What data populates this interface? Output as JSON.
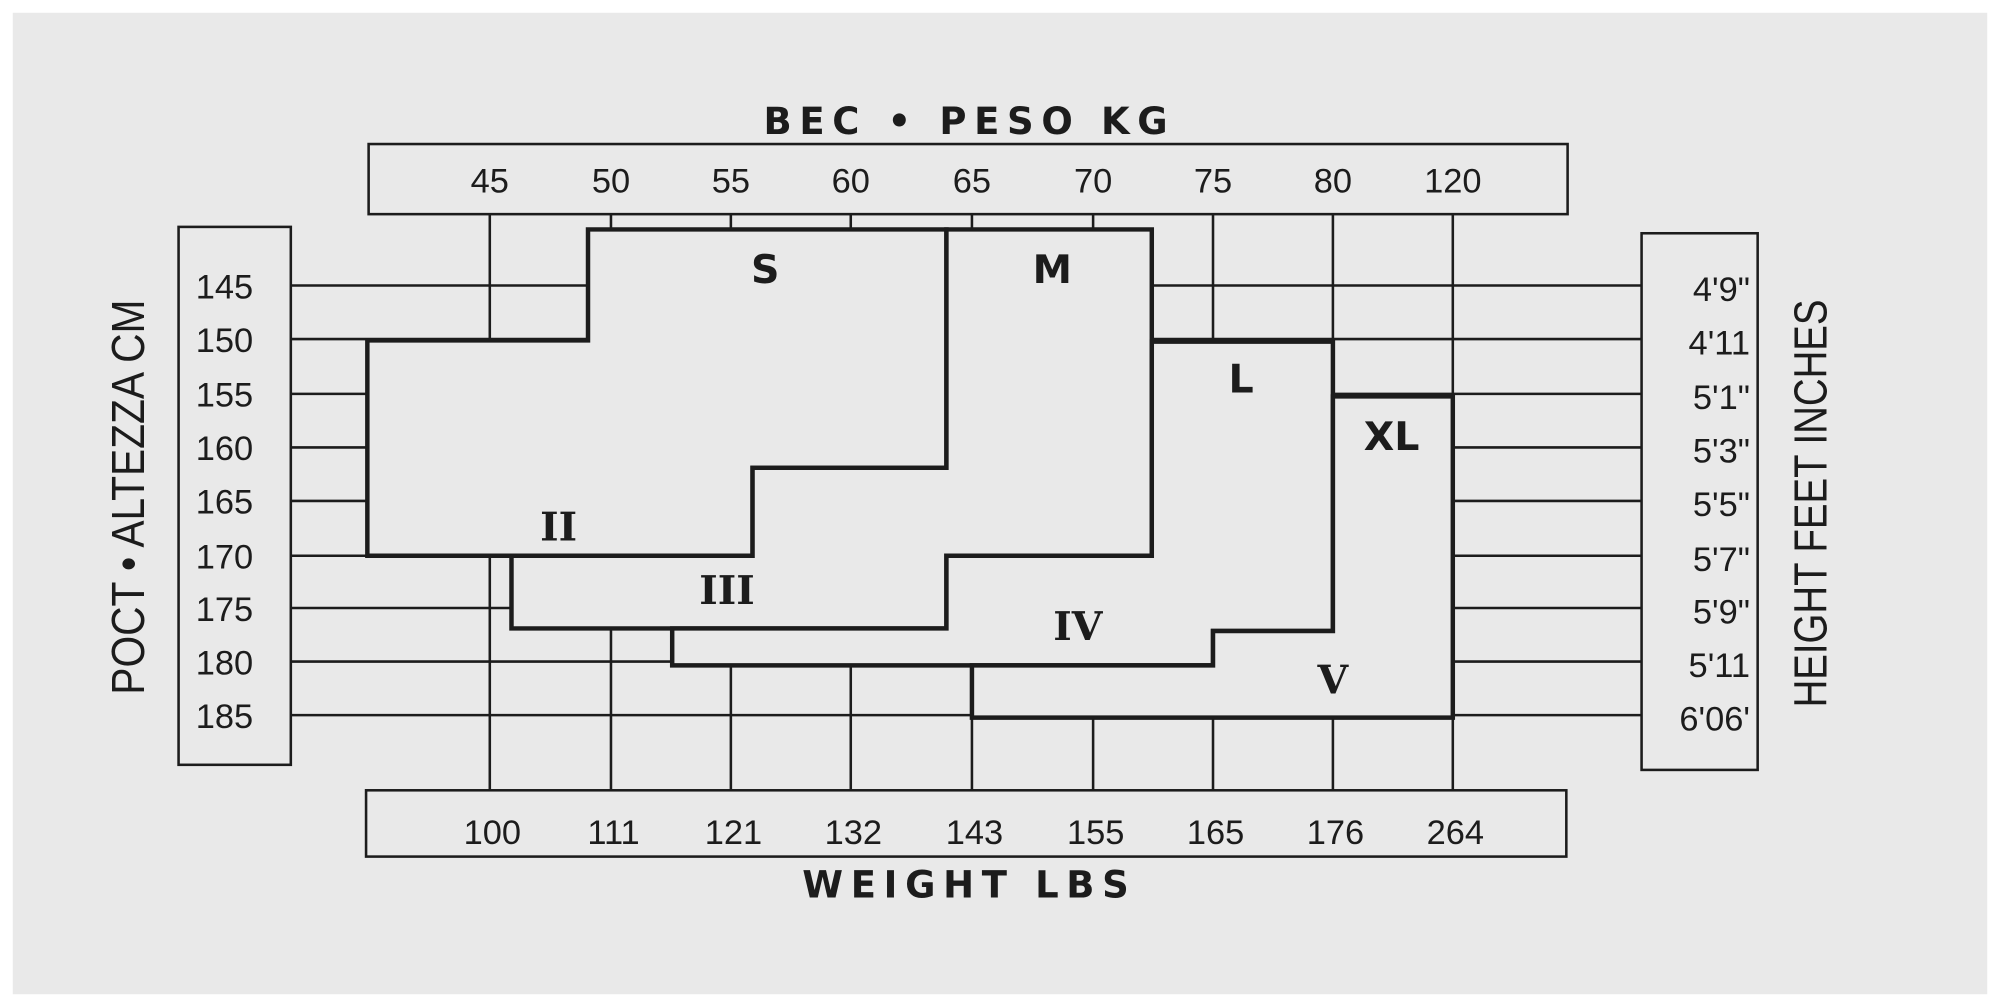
{
  "colors": {
    "background": "#e9e9e9",
    "line": "#1c1c1c",
    "border": "#ffffff"
  },
  "top_title": "BEC • PESO KG",
  "bottom_title": "WEIGHT LBS",
  "left_title": "POCT • ALTEZZA CM",
  "right_title": "HEIGHT FEET INCHES",
  "weight_kg": [
    "45",
    "50",
    "55",
    "60",
    "65",
    "70",
    "75",
    "80",
    "120"
  ],
  "weight_lbs": [
    "100",
    "111",
    "121",
    "132",
    "143",
    "155",
    "165",
    "176",
    "264"
  ],
  "height_cm": [
    "145",
    "150",
    "155",
    "160",
    "165",
    "170",
    "175",
    "180",
    "185"
  ],
  "height_ft": [
    "4'9\"",
    "4'11",
    "5'1\"",
    "5'3\"",
    "5'5\"",
    "5'7\"",
    "5'9\"",
    "5'11",
    "6'06'"
  ],
  "sizes": [
    {
      "letter": "S",
      "roman": "II"
    },
    {
      "letter": "M",
      "roman": "III"
    },
    {
      "letter": "L",
      "roman": "IV"
    },
    {
      "letter": "XL",
      "roman": "V"
    }
  ]
}
